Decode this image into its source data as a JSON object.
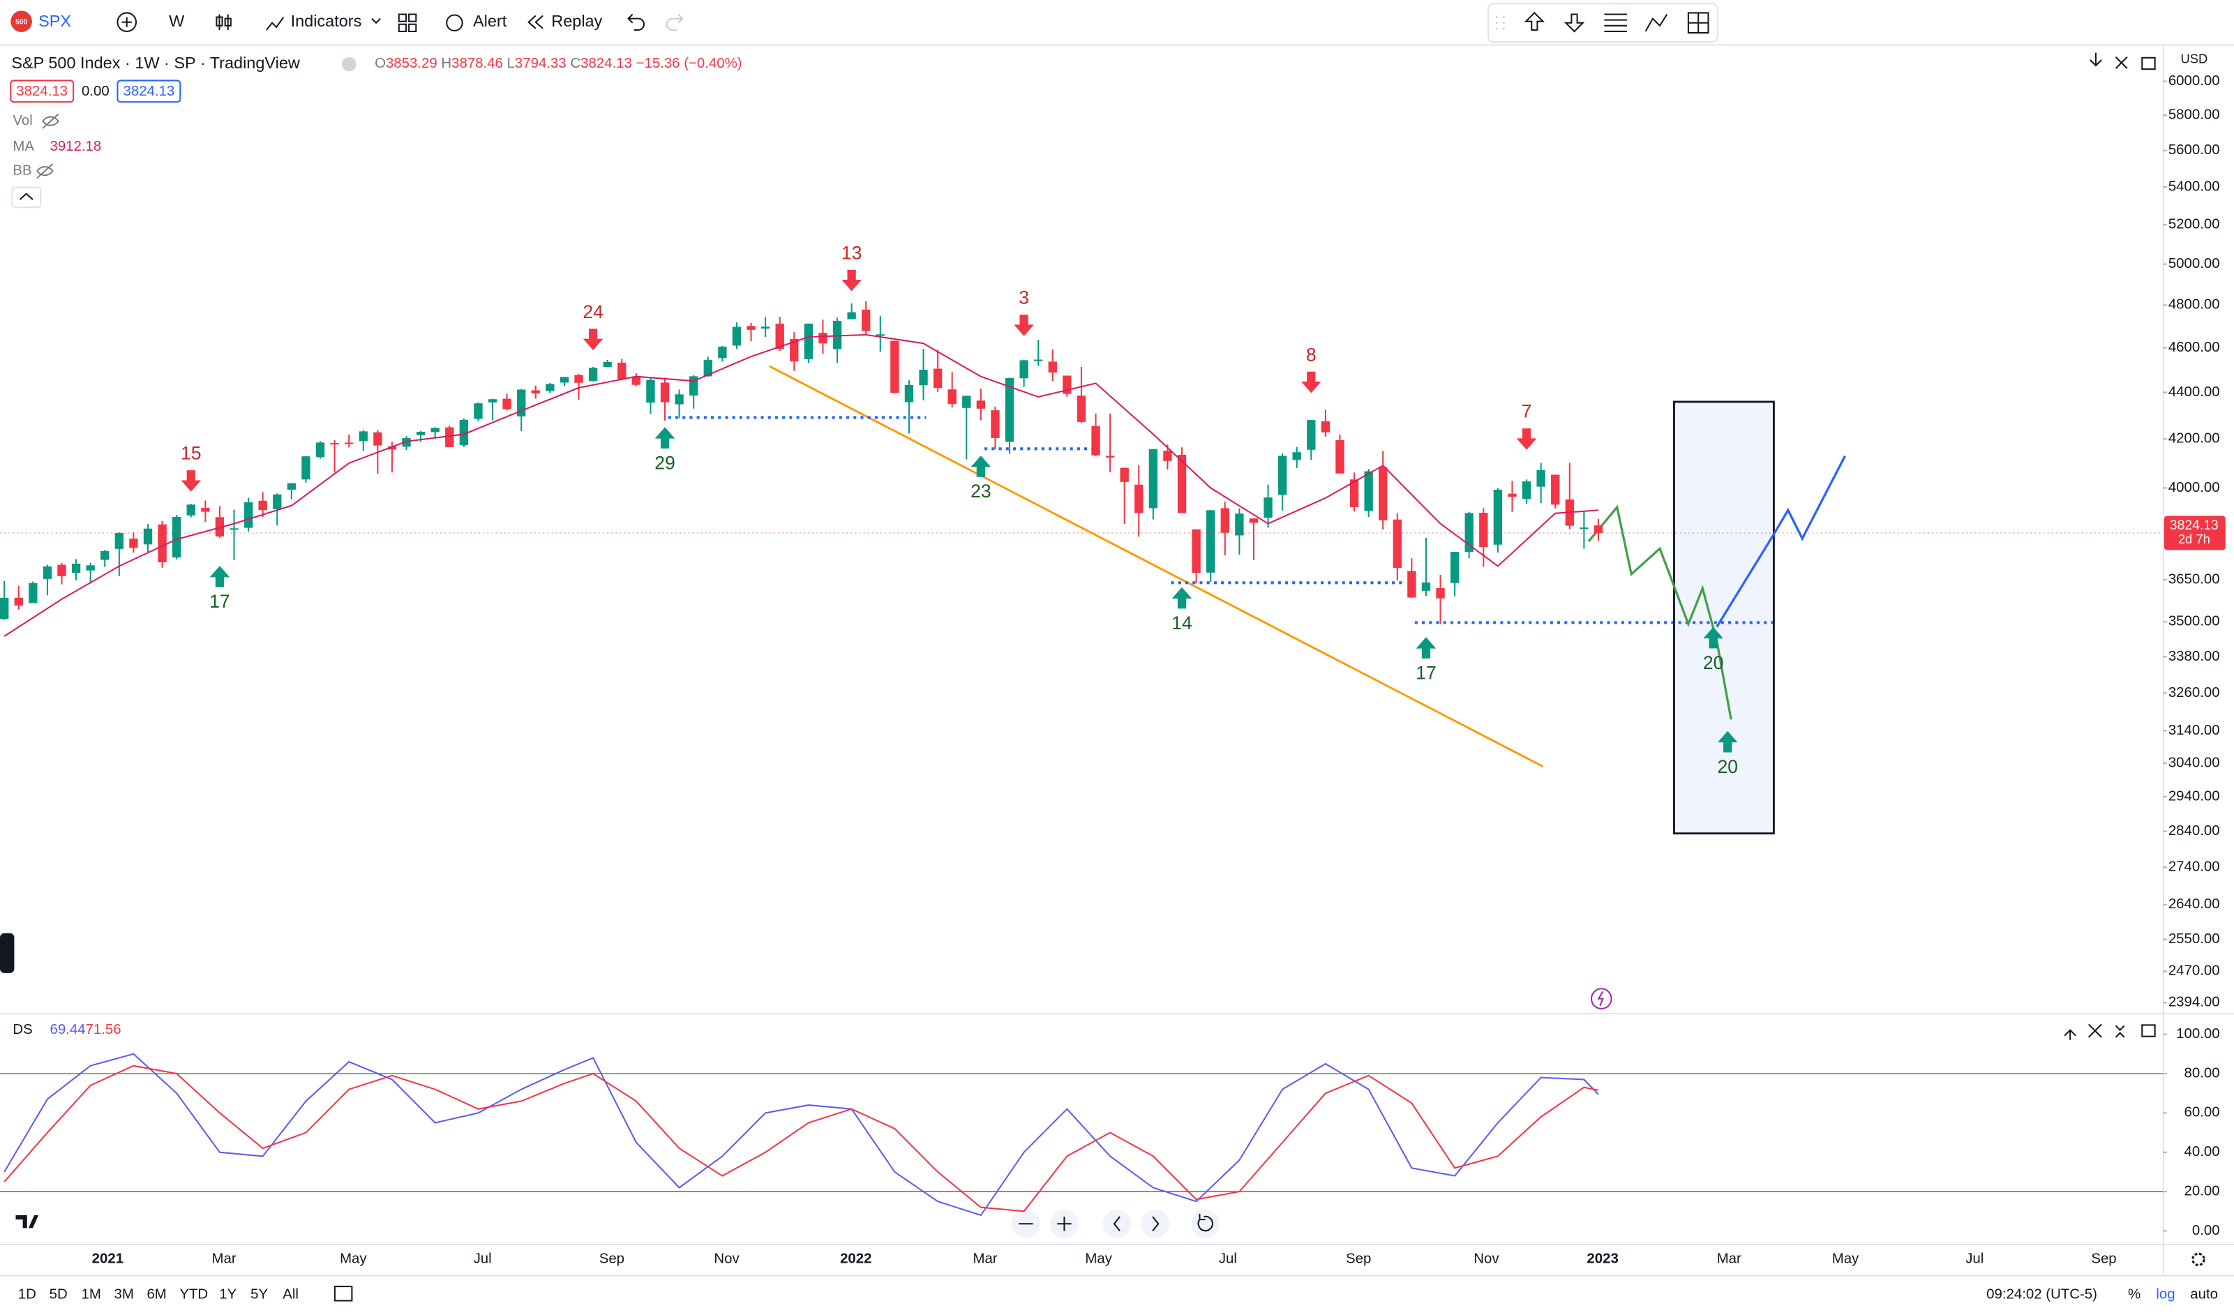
{
  "toolbar": {
    "logo": "500",
    "symbol": "SPX",
    "interval": "W",
    "indicators": "Indicators",
    "alert": "Alert",
    "replay": "Replay"
  },
  "legend": {
    "title": "S&P 500 Index · 1W · SP · TradingView",
    "ohlc_labels": [
      "O",
      "H",
      "L",
      "C"
    ],
    "change": "−15.36 (−0.40%)",
    "spread": "0.00",
    "vol": "Vol",
    "ma": "MA",
    "bb": "BB",
    "ds": "DS"
  },
  "bottom_bar": {
    "ranges": [
      "1D",
      "5D",
      "1M",
      "3M",
      "6M",
      "YTD",
      "1Y",
      "5Y",
      "All"
    ],
    "time": "09:24:02 (UTC-5)",
    "percent": "%",
    "log": "log",
    "auto": "auto"
  },
  "chart_data": [
    {
      "type": "candlestick",
      "currency": "USD",
      "log_scale": true,
      "grid": false,
      "up_color": "#089981",
      "down_color": "#f23645",
      "countdown": "2d 7h",
      "xlim": [
        -0.3,
        150.3
      ],
      "ylim": [
        2373,
        6235
      ],
      "xticks": [
        {
          "value": 7.2,
          "label": "2021"
        },
        {
          "value": 15.3,
          "label": "Mar"
        },
        {
          "value": 24.3,
          "label": "May"
        },
        {
          "value": 33.3,
          "label": "Jul"
        },
        {
          "value": 42.3,
          "label": "Sep"
        },
        {
          "value": 50.3,
          "label": "Nov"
        },
        {
          "value": 59.3,
          "label": "2022"
        },
        {
          "value": 68.3,
          "label": "Mar"
        },
        {
          "value": 76.2,
          "label": "May"
        },
        {
          "value": 85.2,
          "label": "Jul"
        },
        {
          "value": 94.3,
          "label": "Sep"
        },
        {
          "value": 103.2,
          "label": "Nov"
        },
        {
          "value": 111.3,
          "label": "2023"
        },
        {
          "value": 120.1,
          "label": "Mar"
        },
        {
          "value": 128.2,
          "label": "May"
        },
        {
          "value": 137.2,
          "label": "Jul"
        },
        {
          "value": 146.2,
          "label": "Sep"
        }
      ],
      "yticks": [
        {
          "value": 6000,
          "label": "6000.00"
        },
        {
          "value": 5800,
          "label": "5800.00"
        },
        {
          "value": 5600,
          "label": "5600.00"
        },
        {
          "value": 5400,
          "label": "5400.00"
        },
        {
          "value": 5200,
          "label": "5200.00"
        },
        {
          "value": 5000,
          "label": "5000.00"
        },
        {
          "value": 4800,
          "label": "4800.00"
        },
        {
          "value": 4600,
          "label": "4600.00"
        },
        {
          "value": 4400,
          "label": "4400.00"
        },
        {
          "value": 4200,
          "label": "4200.00"
        },
        {
          "value": 4000,
          "label": "4000.00"
        },
        {
          "value": 3650,
          "label": "3650.00"
        },
        {
          "value": 3500,
          "label": "3500.00"
        },
        {
          "value": 3380,
          "label": "3380.00"
        },
        {
          "value": 3260,
          "label": "3260.00"
        },
        {
          "value": 3140,
          "label": "3140.00"
        },
        {
          "value": 3040,
          "label": "3040.00"
        },
        {
          "value": 2940,
          "label": "2940.00"
        },
        {
          "value": 2840,
          "label": "2840.00"
        },
        {
          "value": 2740,
          "label": "2740.00"
        },
        {
          "value": 2640,
          "label": "2640.00"
        },
        {
          "value": 2550,
          "label": "2550.00"
        },
        {
          "value": 2470,
          "label": "2470.00"
        },
        {
          "value": 2394,
          "label": "2394.00"
        }
      ],
      "candles": [
        [
          3510,
          3645,
          3507,
          3585
        ],
        [
          3585,
          3628,
          3543,
          3557
        ],
        [
          3566,
          3644,
          3566,
          3638
        ],
        [
          3653,
          3705,
          3594,
          3699
        ],
        [
          3705,
          3712,
          3633,
          3663
        ],
        [
          3675,
          3726,
          3648,
          3709
        ],
        [
          3684,
          3712,
          3636,
          3703
        ],
        [
          3723,
          3760,
          3697,
          3756
        ],
        [
          3764,
          3827,
          3663,
          3824
        ],
        [
          3803,
          3826,
          3750,
          3768
        ],
        [
          3781,
          3859,
          3753,
          3841
        ],
        [
          3857,
          3870,
          3694,
          3714
        ],
        [
          3732,
          3894,
          3725,
          3886
        ],
        [
          3892,
          3937,
          3884,
          3934
        ],
        [
          3921,
          3950,
          3866,
          3906
        ],
        [
          3885,
          3928,
          3805,
          3811
        ],
        [
          3842,
          3914,
          3723,
          3842
        ],
        [
          3844,
          3961,
          3830,
          3943
        ],
        [
          3949,
          3983,
          3885,
          3913
        ],
        [
          3916,
          3978,
          3853,
          3974
        ],
        [
          3993,
          4020,
          3955,
          4019
        ],
        [
          4034,
          4130,
          4021,
          4128
        ],
        [
          4125,
          4191,
          4118,
          4185
        ],
        [
          4183,
          4195,
          4062,
          4180
        ],
        [
          4185,
          4219,
          4165,
          4181
        ],
        [
          4191,
          4238,
          4150,
          4232
        ],
        [
          4228,
          4238,
          4057,
          4173
        ],
        [
          4169,
          4188,
          4062,
          4156
        ],
        [
          4168,
          4213,
          4154,
          4204
        ],
        [
          4216,
          4234,
          4188,
          4230
        ],
        [
          4229,
          4249,
          4207,
          4247
        ],
        [
          4249,
          4256,
          4165,
          4166
        ],
        [
          4174,
          4287,
          4166,
          4281
        ],
        [
          4285,
          4356,
          4275,
          4352
        ],
        [
          4356,
          4372,
          4279,
          4370
        ],
        [
          4372,
          4394,
          4321,
          4327
        ],
        [
          4296,
          4415,
          4233,
          4412
        ],
        [
          4409,
          4430,
          4372,
          4395
        ],
        [
          4406,
          4441,
          4396,
          4437
        ],
        [
          4443,
          4468,
          4427,
          4468
        ],
        [
          4477,
          4481,
          4367,
          4442
        ],
        [
          4450,
          4513,
          4448,
          4509
        ],
        [
          4513,
          4545,
          4513,
          4535
        ],
        [
          4532,
          4549,
          4458,
          4458
        ],
        [
          4470,
          4485,
          4427,
          4433
        ],
        [
          4355,
          4466,
          4306,
          4455
        ],
        [
          4443,
          4465,
          4278,
          4357
        ],
        [
          4348,
          4412,
          4288,
          4391
        ],
        [
          4386,
          4476,
          4329,
          4471
        ],
        [
          4471,
          4559,
          4469,
          4545
        ],
        [
          4553,
          4608,
          4537,
          4605
        ],
        [
          4610,
          4718,
          4595,
          4697
        ],
        [
          4701,
          4715,
          4630,
          4683
        ],
        [
          4689,
          4743,
          4650,
          4698
        ],
        [
          4712,
          4744,
          4585,
          4595
        ],
        [
          4640,
          4672,
          4495,
          4538
        ],
        [
          4548,
          4713,
          4531,
          4712
        ],
        [
          4669,
          4731,
          4572,
          4620
        ],
        [
          4594,
          4740,
          4531,
          4725
        ],
        [
          4733,
          4808,
          4733,
          4766
        ],
        [
          4778,
          4819,
          4662,
          4677
        ],
        [
          4655,
          4749,
          4582,
          4662
        ],
        [
          4632,
          4632,
          4395,
          4398
        ],
        [
          4357,
          4453,
          4223,
          4432
        ],
        [
          4431,
          4595,
          4365,
          4500
        ],
        [
          4505,
          4589,
          4402,
          4419
        ],
        [
          4413,
          4490,
          4335,
          4349
        ],
        [
          4332,
          4385,
          4115,
          4385
        ],
        [
          4364,
          4416,
          4279,
          4329
        ],
        [
          4322,
          4338,
          4157,
          4204
        ],
        [
          4188,
          4465,
          4138,
          4463
        ],
        [
          4462,
          4546,
          4424,
          4543
        ],
        [
          4541,
          4637,
          4517,
          4546
        ],
        [
          4537,
          4593,
          4450,
          4488
        ],
        [
          4474,
          4474,
          4381,
          4393
        ],
        [
          4386,
          4513,
          4267,
          4272
        ],
        [
          4255,
          4308,
          4128,
          4132
        ],
        [
          4130,
          4308,
          4063,
          4123
        ],
        [
          4081,
          4082,
          3859,
          4024
        ],
        [
          4013,
          4091,
          3810,
          3901
        ],
        [
          3920,
          4158,
          3876,
          4158
        ],
        [
          4151,
          4177,
          4074,
          4109
        ],
        [
          4134,
          4165,
          3901,
          3901
        ],
        [
          3838,
          3838,
          3637,
          3675
        ],
        [
          3676,
          3913,
          3642,
          3912
        ],
        [
          3920,
          3946,
          3740,
          3825
        ],
        [
          3815,
          3919,
          3743,
          3899
        ],
        [
          3880,
          3880,
          3722,
          3863
        ],
        [
          3883,
          4013,
          3844,
          3962
        ],
        [
          3972,
          4141,
          3911,
          4130
        ],
        [
          4113,
          4167,
          4080,
          4145
        ],
        [
          4155,
          4280,
          4114,
          4280
        ],
        [
          4275,
          4325,
          4210,
          4228
        ],
        [
          4195,
          4218,
          4058,
          4058
        ],
        [
          4034,
          4062,
          3907,
          3924
        ],
        [
          3909,
          4077,
          3886,
          4067
        ],
        [
          4083,
          4150,
          3838,
          3873
        ],
        [
          3876,
          3900,
          3648,
          3693
        ],
        [
          3682,
          3729,
          3584,
          3586
        ],
        [
          3610,
          3806,
          3591,
          3640
        ],
        [
          3620,
          3668,
          3491,
          3583
        ],
        [
          3638,
          3753,
          3590,
          3753
        ],
        [
          3753,
          3906,
          3729,
          3901
        ],
        [
          3902,
          3920,
          3698,
          3771
        ],
        [
          3780,
          3999,
          3750,
          3993
        ],
        [
          3977,
          4028,
          3906,
          3965
        ],
        [
          3956,
          4034,
          3936,
          4026
        ],
        [
          4005,
          4101,
          3940,
          4072
        ],
        [
          4053,
          4053,
          3919,
          3934
        ],
        [
          3954,
          4101,
          3838,
          3852
        ],
        [
          3845,
          3906,
          3765,
          3845
        ],
        [
          3853.29,
          3878.46,
          3794.33,
          3824.13
        ]
      ],
      "ma": {
        "color": "#d81b60",
        "x": [
          0,
          4,
          8,
          12,
          16,
          20,
          24,
          28,
          32,
          36,
          40,
          44,
          48,
          52,
          56,
          60,
          64,
          68,
          72,
          76,
          80,
          84,
          88,
          92,
          96,
          100,
          104,
          108,
          111
        ],
        "values": [
          3450,
          3580,
          3700,
          3800,
          3860,
          3930,
          4100,
          4190,
          4220,
          4320,
          4420,
          4470,
          4450,
          4560,
          4650,
          4660,
          4620,
          4470,
          4380,
          4440,
          4220,
          4000,
          3860,
          3960,
          4090,
          3860,
          3700,
          3900,
          3912.18
        ]
      },
      "annotation_colors": {
        "down": "#f23645",
        "up": "#089981",
        "down_text": "#c62828",
        "up_text": "#1b5e20"
      },
      "annotations": [
        {
          "text": "15",
          "x": 13,
          "y": 3985,
          "direction": "down"
        },
        {
          "text": "17",
          "x": 15,
          "y": 3701,
          "direction": "up"
        },
        {
          "text": "24",
          "x": 41,
          "y": 4589,
          "direction": "down"
        },
        {
          "text": "29",
          "x": 46,
          "y": 4250,
          "direction": "up"
        },
        {
          "text": "13",
          "x": 59,
          "y": 4867,
          "direction": "down"
        },
        {
          "text": "23",
          "x": 68,
          "y": 4131,
          "direction": "up"
        },
        {
          "text": "3",
          "x": 71,
          "y": 4654,
          "direction": "down"
        },
        {
          "text": "14",
          "x": 82,
          "y": 3623,
          "direction": "up"
        },
        {
          "text": "8",
          "x": 91,
          "y": 4397,
          "direction": "down"
        },
        {
          "text": "17",
          "x": 99,
          "y": 3447,
          "direction": "up"
        },
        {
          "text": "7",
          "x": 106,
          "y": 4155,
          "direction": "down"
        },
        {
          "text": "20",
          "x": 119,
          "y": 3482,
          "direction": "up"
        },
        {
          "text": "20",
          "x": 120,
          "y": 3139,
          "direction": "up"
        }
      ]
    },
    {
      "type": "line",
      "xlim": [
        -0.3,
        150.3
      ],
      "ylim": [
        -6.5,
        109.4
      ],
      "yticks": [
        {
          "value": 100,
          "label": "100.00"
        },
        {
          "value": 80,
          "label": "80.00"
        },
        {
          "value": 60,
          "label": "60.00"
        },
        {
          "value": 40,
          "label": "40.00"
        },
        {
          "value": 20,
          "label": "20.00"
        },
        {
          "value": 0,
          "label": "0.00"
        }
      ],
      "levels": [
        {
          "value": 80,
          "color": "#4caf50"
        },
        {
          "value": 20,
          "color": "#f23645"
        }
      ],
      "series": [
        {
          "color": "#5b5bf0",
          "x": [
            0,
            3,
            6,
            9,
            12,
            15,
            18,
            21,
            24,
            27,
            30,
            33,
            36,
            39,
            41,
            44,
            47,
            50,
            53,
            56,
            59,
            62,
            65,
            68,
            71,
            74,
            77,
            80,
            83,
            86,
            89,
            92,
            95,
            98,
            101,
            104,
            107,
            110,
            111
          ],
          "values": [
            30,
            67,
            84,
            90,
            70,
            40,
            38,
            66,
            86,
            77,
            55,
            60,
            72,
            82,
            88,
            45,
            22,
            38,
            60,
            64,
            62,
            30,
            15,
            8,
            40,
            62,
            38,
            22,
            15,
            36,
            72,
            85,
            72,
            32,
            28,
            55,
            78,
            77,
            69.44
          ]
        },
        {
          "color": "#f23645",
          "x": [
            0,
            3,
            6,
            9,
            12,
            15,
            18,
            21,
            24,
            27,
            30,
            33,
            36,
            39,
            41,
            44,
            47,
            50,
            53,
            56,
            59,
            62,
            65,
            68,
            71,
            74,
            77,
            80,
            83,
            86,
            89,
            92,
            95,
            98,
            101,
            104,
            107,
            110,
            111
          ],
          "values": [
            25,
            50,
            74,
            84,
            80,
            60,
            42,
            50,
            72,
            79,
            72,
            62,
            66,
            75,
            80,
            66,
            42,
            28,
            40,
            55,
            62,
            52,
            30,
            12,
            10,
            38,
            50,
            38,
            16,
            20,
            45,
            70,
            79,
            65,
            32,
            38,
            58,
            73,
            71.56
          ]
        }
      ]
    }
  ]
}
